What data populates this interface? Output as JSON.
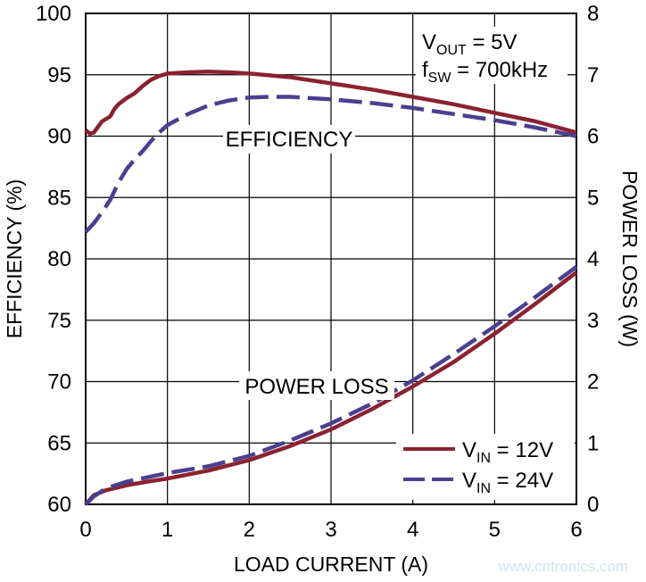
{
  "chart_data": {
    "type": "line",
    "xlabel": "LOAD CURRENT (A)",
    "ylabel_left": "EFFICIENCY (%)",
    "ylabel_right": "POWER LOSS (W)",
    "xlim": [
      0,
      6
    ],
    "ylim_left": [
      60,
      100
    ],
    "ylim_right": [
      0,
      8
    ],
    "x_ticks": [
      "0",
      "1",
      "2",
      "3",
      "4",
      "5",
      "6"
    ],
    "y_left_ticks": [
      "60",
      "65",
      "70",
      "75",
      "80",
      "85",
      "90",
      "95",
      "100"
    ],
    "y_right_ticks": [
      "0",
      "1",
      "2",
      "3",
      "4",
      "5",
      "6",
      "7",
      "8"
    ],
    "grid": true,
    "annotations": {
      "vout": {
        "main": "V",
        "sub": "OUT",
        "rest": " = 5V"
      },
      "fsw": {
        "main": "f",
        "sub": "SW",
        "rest": " = 700kHz"
      },
      "efficiency_label": "EFFICIENCY",
      "power_loss_label": "POWER LOSS"
    },
    "legend": {
      "placement": "bottom-right",
      "items": [
        {
          "main": "V",
          "sub": "IN",
          "rest": " = 12V"
        },
        {
          "main": "V",
          "sub": "IN",
          "rest": " = 24V"
        }
      ]
    },
    "colors": {
      "vin12": "#8b2230",
      "vin24": "#4a3f8f"
    },
    "series": [
      {
        "group": "efficiency",
        "axis": "left",
        "style": "solid",
        "color": "#8b2230",
        "points": [
          [
            0,
            90.5
          ],
          [
            0.05,
            90.2
          ],
          [
            0.1,
            90.3
          ],
          [
            0.2,
            91.2
          ],
          [
            0.3,
            91.6
          ],
          [
            0.35,
            92.2
          ],
          [
            0.4,
            92.6
          ],
          [
            0.5,
            93.1
          ],
          [
            0.6,
            93.5
          ],
          [
            0.7,
            94.1
          ],
          [
            0.8,
            94.6
          ],
          [
            0.9,
            94.9
          ],
          [
            1.0,
            95.1
          ],
          [
            1.25,
            95.2
          ],
          [
            1.5,
            95.25
          ],
          [
            1.75,
            95.2
          ],
          [
            2.0,
            95.1
          ],
          [
            2.5,
            94.8
          ],
          [
            3.0,
            94.3
          ],
          [
            3.5,
            93.8
          ],
          [
            4.0,
            93.2
          ],
          [
            4.5,
            92.6
          ],
          [
            5.0,
            91.9
          ],
          [
            5.5,
            91.2
          ],
          [
            6.0,
            90.3
          ]
        ]
      },
      {
        "group": "efficiency",
        "axis": "left",
        "style": "dashed",
        "color": "#4a3f8f",
        "points": [
          [
            0,
            82.2
          ],
          [
            0.1,
            82.9
          ],
          [
            0.2,
            83.8
          ],
          [
            0.3,
            84.8
          ],
          [
            0.4,
            86.2
          ],
          [
            0.5,
            87.3
          ],
          [
            0.6,
            88.1
          ],
          [
            0.7,
            88.8
          ],
          [
            0.8,
            89.6
          ],
          [
            0.9,
            90.3
          ],
          [
            1.0,
            90.9
          ],
          [
            1.25,
            91.8
          ],
          [
            1.5,
            92.5
          ],
          [
            1.75,
            92.9
          ],
          [
            2.0,
            93.15
          ],
          [
            2.25,
            93.2
          ],
          [
            2.5,
            93.2
          ],
          [
            3.0,
            93.0
          ],
          [
            3.5,
            92.7
          ],
          [
            4.0,
            92.3
          ],
          [
            4.5,
            91.8
          ],
          [
            5.0,
            91.3
          ],
          [
            5.5,
            90.7
          ],
          [
            6.0,
            90.0
          ]
        ]
      },
      {
        "group": "power_loss",
        "axis": "right",
        "style": "solid",
        "color": "#8b2230",
        "points": [
          [
            0,
            0.0
          ],
          [
            0.1,
            0.15
          ],
          [
            0.25,
            0.23
          ],
          [
            0.5,
            0.31
          ],
          [
            0.75,
            0.37
          ],
          [
            1.0,
            0.42
          ],
          [
            1.5,
            0.55
          ],
          [
            2.0,
            0.72
          ],
          [
            2.5,
            0.95
          ],
          [
            3.0,
            1.22
          ],
          [
            3.5,
            1.55
          ],
          [
            4.0,
            1.92
          ],
          [
            4.5,
            2.32
          ],
          [
            5.0,
            2.78
          ],
          [
            5.5,
            3.27
          ],
          [
            6.0,
            3.78
          ]
        ]
      },
      {
        "group": "power_loss",
        "axis": "right",
        "style": "dashed",
        "color": "#4a3f8f",
        "points": [
          [
            0,
            0.0
          ],
          [
            0.1,
            0.13
          ],
          [
            0.25,
            0.26
          ],
          [
            0.5,
            0.37
          ],
          [
            0.75,
            0.44
          ],
          [
            1.0,
            0.51
          ],
          [
            1.5,
            0.62
          ],
          [
            2.0,
            0.79
          ],
          [
            2.5,
            1.04
          ],
          [
            3.0,
            1.32
          ],
          [
            3.5,
            1.64
          ],
          [
            4.0,
            2.02
          ],
          [
            4.5,
            2.45
          ],
          [
            5.0,
            2.9
          ],
          [
            5.5,
            3.38
          ],
          [
            6.0,
            3.87
          ]
        ]
      }
    ]
  },
  "watermark": "www.cntronics.com"
}
